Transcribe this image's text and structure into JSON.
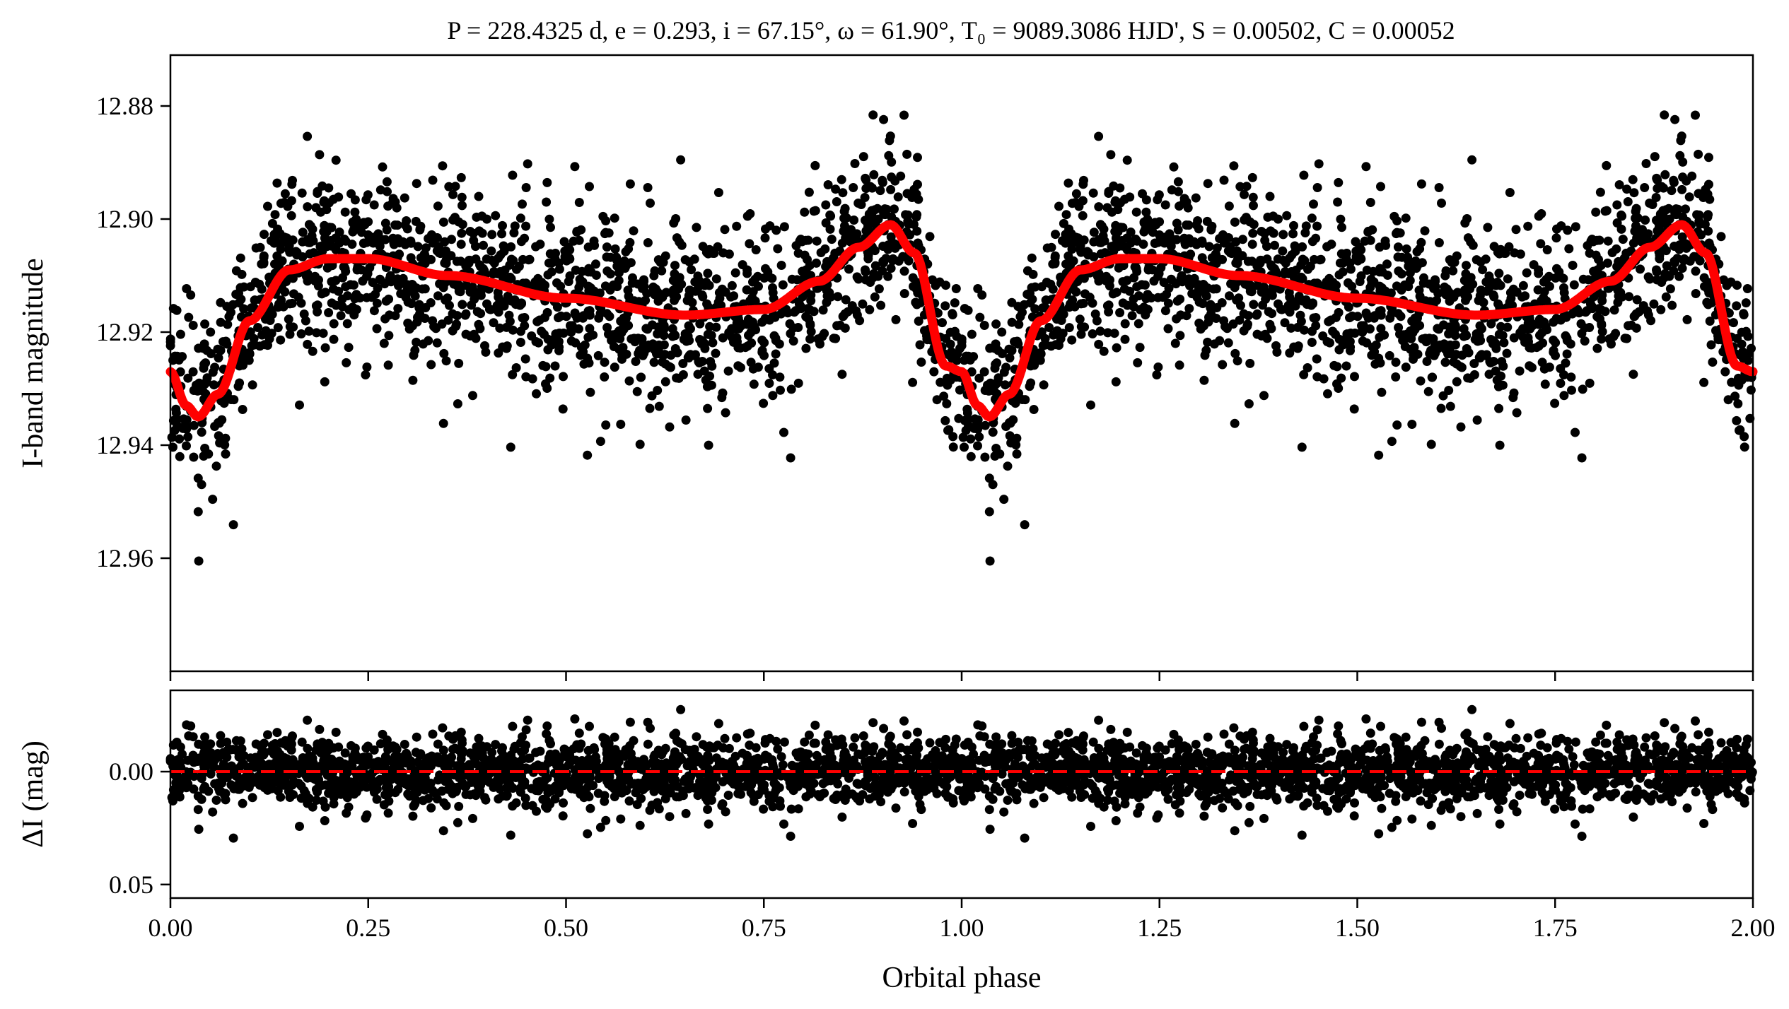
{
  "title": "P = 228.4325 d, e = 0.293, i = 67.15°, ω = 61.90°, T₀ = 9089.3086 HJD', S = 0.00502, C = 0.00052",
  "colors": {
    "points": "#000000",
    "model": "#ff0000",
    "zero_line": "#ff0000",
    "axes": "#000000"
  },
  "chart_data": [
    {
      "type": "scatter",
      "panel": "light-curve",
      "xlabel": "",
      "ylabel": "I-band magnitude",
      "xlim": [
        0.0,
        2.0
      ],
      "ylim": [
        12.98,
        12.871
      ],
      "y_inverted": true,
      "yticks": [
        12.88,
        12.9,
        12.92,
        12.94,
        12.96
      ],
      "ytick_labels": [
        "12.88",
        "12.90",
        "12.92",
        "12.94",
        "12.96"
      ],
      "series": [
        {
          "kind": "observations",
          "description": "dense photometric points (schematic)",
          "scatter_std_mag": 0.0075
        },
        {
          "kind": "model",
          "phase": [
            0.0,
            0.02,
            0.035,
            0.06,
            0.1,
            0.15,
            0.2,
            0.25,
            0.35,
            0.5,
            0.65,
            0.75,
            0.82,
            0.87,
            0.91,
            0.94,
            0.98,
            1.0
          ],
          "mag": [
            12.927,
            12.933,
            12.935,
            12.931,
            12.918,
            12.909,
            12.907,
            12.907,
            12.91,
            12.914,
            12.917,
            12.916,
            12.911,
            12.905,
            12.901,
            12.906,
            12.926,
            12.927
          ]
        }
      ]
    },
    {
      "type": "scatter",
      "panel": "residuals",
      "xlabel": "Orbital phase",
      "ylabel": "ΔI (mag)",
      "xlim": [
        0.0,
        2.0
      ],
      "ylim": [
        0.056,
        -0.036
      ],
      "y_inverted": true,
      "yticks": [
        0.0,
        0.05
      ],
      "ytick_labels": [
        "0.00",
        "0.05"
      ],
      "xticks": [
        0.0,
        0.25,
        0.5,
        0.75,
        1.0,
        1.25,
        1.5,
        1.75,
        2.0
      ],
      "xtick_labels": [
        "0.00",
        "0.25",
        "0.50",
        "0.75",
        "1.00",
        "1.25",
        "1.50",
        "1.75",
        "2.00"
      ],
      "zero_line": 0.0,
      "residual_std_mag": 0.0075
    }
  ]
}
